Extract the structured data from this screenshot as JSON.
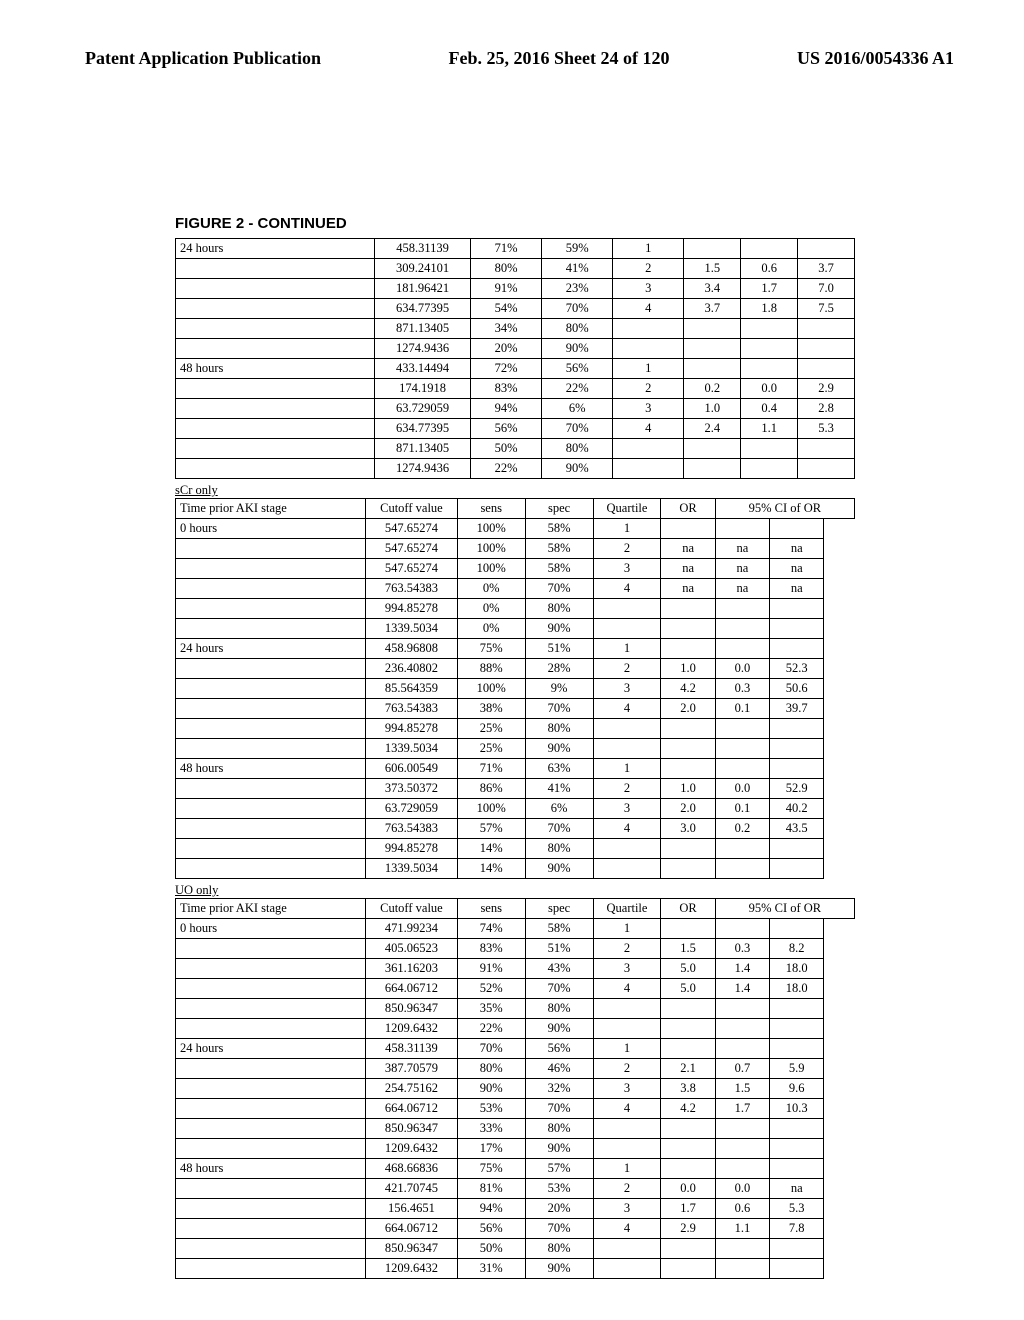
{
  "header": {
    "left": "Patent Application Publication",
    "center": "Feb. 25, 2016  Sheet 24 of 120",
    "right": "US 2016/0054336 A1"
  },
  "figure_title": "FIGURE 2 - CONTINUED",
  "table_top": {
    "colwidths": [
      "28%",
      "13.5%",
      "10%",
      "10%",
      "10%",
      "8%",
      "8%",
      "8%"
    ],
    "rows": [
      [
        "24 hours",
        "458.31139",
        "71%",
        "59%",
        "1",
        "",
        "",
        ""
      ],
      [
        "",
        "309.24101",
        "80%",
        "41%",
        "2",
        "1.5",
        "0.6",
        "3.7"
      ],
      [
        "",
        "181.96421",
        "91%",
        "23%",
        "3",
        "3.4",
        "1.7",
        "7.0"
      ],
      [
        "",
        "634.77395",
        "54%",
        "70%",
        "4",
        "3.7",
        "1.8",
        "7.5"
      ],
      [
        "",
        "871.13405",
        "34%",
        "80%",
        "",
        "",
        "",
        ""
      ],
      [
        "",
        "1274.9436",
        "20%",
        "90%",
        "",
        "",
        "",
        ""
      ],
      [
        "48 hours",
        "433.14494",
        "72%",
        "56%",
        "1",
        "",
        "",
        ""
      ],
      [
        "",
        "174.1918",
        "83%",
        "22%",
        "2",
        "0.2",
        "0.0",
        "2.9"
      ],
      [
        "",
        "63.729059",
        "94%",
        "6%",
        "3",
        "1.0",
        "0.4",
        "2.8"
      ],
      [
        "",
        "634.77395",
        "56%",
        "70%",
        "4",
        "2.4",
        "1.1",
        "5.3"
      ],
      [
        "",
        "871.13405",
        "50%",
        "80%",
        "",
        "",
        "",
        ""
      ],
      [
        "",
        "1274.9436",
        "22%",
        "90%",
        "",
        "",
        "",
        ""
      ]
    ]
  },
  "section_scr": {
    "label": "sCr only",
    "header": [
      "Time prior AKI stage",
      "Cutoff value",
      "sens",
      "spec",
      "Quartile",
      "OR",
      "95% CI of OR"
    ],
    "rows": [
      [
        "0 hours",
        "547.65274",
        "100%",
        "58%",
        "1",
        "",
        "",
        ""
      ],
      [
        "",
        "547.65274",
        "100%",
        "58%",
        "2",
        "na",
        "na",
        "na"
      ],
      [
        "",
        "547.65274",
        "100%",
        "58%",
        "3",
        "na",
        "na",
        "na"
      ],
      [
        "",
        "763.54383",
        "0%",
        "70%",
        "4",
        "na",
        "na",
        "na"
      ],
      [
        "",
        "994.85278",
        "0%",
        "80%",
        "",
        "",
        "",
        ""
      ],
      [
        "",
        "1339.5034",
        "0%",
        "90%",
        "",
        "",
        "",
        ""
      ],
      [
        "24 hours",
        "458.96808",
        "75%",
        "51%",
        "1",
        "",
        "",
        ""
      ],
      [
        "",
        "236.40802",
        "88%",
        "28%",
        "2",
        "1.0",
        "0.0",
        "52.3"
      ],
      [
        "",
        "85.564359",
        "100%",
        "9%",
        "3",
        "4.2",
        "0.3",
        "50.6"
      ],
      [
        "",
        "763.54383",
        "38%",
        "70%",
        "4",
        "2.0",
        "0.1",
        "39.7"
      ],
      [
        "",
        "994.85278",
        "25%",
        "80%",
        "",
        "",
        "",
        ""
      ],
      [
        "",
        "1339.5034",
        "25%",
        "90%",
        "",
        "",
        "",
        ""
      ],
      [
        "48 hours",
        "606.00549",
        "71%",
        "63%",
        "1",
        "",
        "",
        ""
      ],
      [
        "",
        "373.50372",
        "86%",
        "41%",
        "2",
        "1.0",
        "0.0",
        "52.9"
      ],
      [
        "",
        "63.729059",
        "100%",
        "6%",
        "3",
        "2.0",
        "0.1",
        "40.2"
      ],
      [
        "",
        "763.54383",
        "57%",
        "70%",
        "4",
        "3.0",
        "0.2",
        "43.5"
      ],
      [
        "",
        "994.85278",
        "14%",
        "80%",
        "",
        "",
        "",
        ""
      ],
      [
        "",
        "1339.5034",
        "14%",
        "90%",
        "",
        "",
        "",
        ""
      ]
    ]
  },
  "section_uo": {
    "label": "UO only",
    "header": [
      "Time prior AKI stage",
      "Cutoff value",
      "sens",
      "spec",
      "Quartile",
      "OR",
      "95% CI of OR"
    ],
    "rows": [
      [
        "0 hours",
        "471.99234",
        "74%",
        "58%",
        "1",
        "",
        "",
        ""
      ],
      [
        "",
        "405.06523",
        "83%",
        "51%",
        "2",
        "1.5",
        "0.3",
        "8.2"
      ],
      [
        "",
        "361.16203",
        "91%",
        "43%",
        "3",
        "5.0",
        "1.4",
        "18.0"
      ],
      [
        "",
        "664.06712",
        "52%",
        "70%",
        "4",
        "5.0",
        "1.4",
        "18.0"
      ],
      [
        "",
        "850.96347",
        "35%",
        "80%",
        "",
        "",
        "",
        ""
      ],
      [
        "",
        "1209.6432",
        "22%",
        "90%",
        "",
        "",
        "",
        ""
      ],
      [
        "24 hours",
        "458.31139",
        "70%",
        "56%",
        "1",
        "",
        "",
        ""
      ],
      [
        "",
        "387.70579",
        "80%",
        "46%",
        "2",
        "2.1",
        "0.7",
        "5.9"
      ],
      [
        "",
        "254.75162",
        "90%",
        "32%",
        "3",
        "3.8",
        "1.5",
        "9.6"
      ],
      [
        "",
        "664.06712",
        "53%",
        "70%",
        "4",
        "4.2",
        "1.7",
        "10.3"
      ],
      [
        "",
        "850.96347",
        "33%",
        "80%",
        "",
        "",
        "",
        ""
      ],
      [
        "",
        "1209.6432",
        "17%",
        "90%",
        "",
        "",
        "",
        ""
      ],
      [
        "48 hours",
        "468.66836",
        "75%",
        "57%",
        "1",
        "",
        "",
        ""
      ],
      [
        "",
        "421.70745",
        "81%",
        "53%",
        "2",
        "0.0",
        "0.0",
        "na"
      ],
      [
        "",
        "156.4651",
        "94%",
        "20%",
        "3",
        "1.7",
        "0.6",
        "5.3"
      ],
      [
        "",
        "664.06712",
        "56%",
        "70%",
        "4",
        "2.9",
        "1.1",
        "7.8"
      ],
      [
        "",
        "850.96347",
        "50%",
        "80%",
        "",
        "",
        "",
        ""
      ],
      [
        "",
        "1209.6432",
        "31%",
        "90%",
        "",
        "",
        "",
        ""
      ]
    ]
  }
}
